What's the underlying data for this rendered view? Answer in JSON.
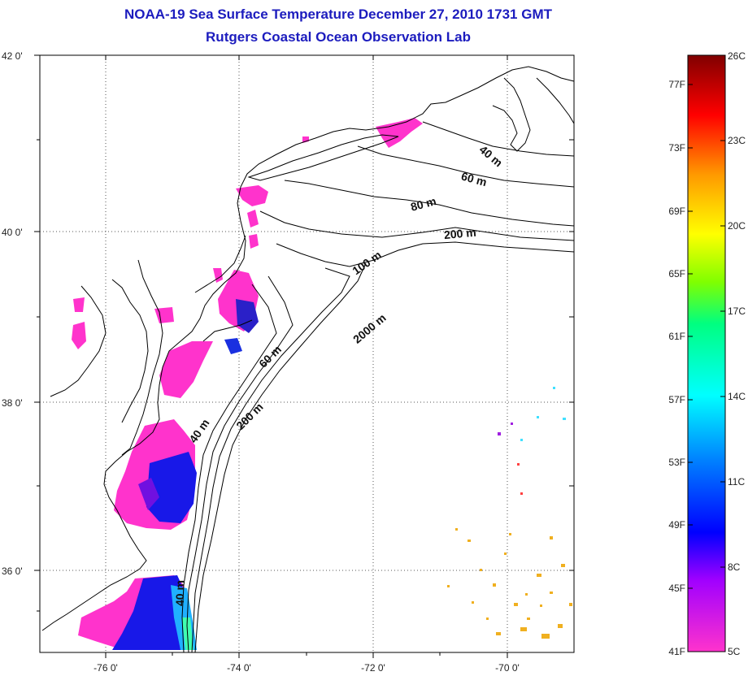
{
  "title": {
    "line1": "NOAA-19 Sea Surface Temperature December 27, 2010 1731 GMT",
    "line2": "Rutgers Coastal Ocean Observation Lab"
  },
  "map": {
    "lat_ticks": [
      "42 0'",
      "40 0'",
      "38 0'",
      "36 0'"
    ],
    "lon_ticks": [
      "-76 0'",
      "-74 0'",
      "-72 0'",
      "-70 0'"
    ],
    "grid": "dotted",
    "depth_labels": [
      "40 m",
      "60 m",
      "80 m",
      "200 m",
      "100 m",
      "2000 m",
      "60 m",
      "200 m",
      "40 m",
      "40 m"
    ]
  },
  "colorbar": {
    "fahrenheit": [
      "77F",
      "73F",
      "69F",
      "65F",
      "61F",
      "57F",
      "53F",
      "49F",
      "45F",
      "41F"
    ],
    "celsius": [
      "26C",
      "23C",
      "20C",
      "17C",
      "14C",
      "11C",
      "8C",
      "5C"
    ],
    "colors": [
      "#800000",
      "#ff0000",
      "#ff8000",
      "#ffff00",
      "#00ff00",
      "#00ffff",
      "#0000ff",
      "#ff00ff"
    ]
  }
}
